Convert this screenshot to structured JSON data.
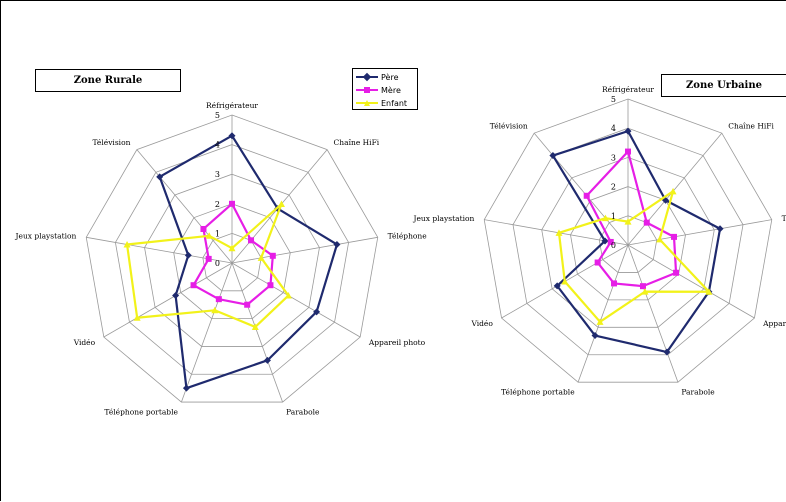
{
  "colors": {
    "pere": "#1f2a6e",
    "mere": "#e61ee6",
    "enfant": "#f2f21a",
    "grid": "#9a9a9a"
  },
  "legend": {
    "items": [
      "Père",
      "Mère",
      "Enfant"
    ]
  },
  "chart_data": [
    {
      "type": "radar",
      "title": "Zone Rurale",
      "categories": [
        "Réfrigérateur",
        "Chaîne HiFi",
        "Téléphone",
        "Appareil photo",
        "Parabole",
        "Téléphone portable",
        "Vidéo",
        "Jeux playstation",
        "Télévision"
      ],
      "ticks": [
        "0",
        "1",
        "2",
        "3",
        "4",
        "5"
      ],
      "rmax": 5,
      "series": [
        {
          "name": "Père",
          "values": [
            4.3,
            2.4,
            3.6,
            3.3,
            3.5,
            4.5,
            2.2,
            1.5,
            3.8
          ]
        },
        {
          "name": "Mère",
          "values": [
            2.0,
            1.0,
            1.4,
            1.5,
            1.5,
            1.3,
            1.5,
            0.8,
            1.5
          ]
        },
        {
          "name": "Enfant",
          "values": [
            0.5,
            2.6,
            1.0,
            2.2,
            2.3,
            1.7,
            3.7,
            3.6,
            1.2
          ]
        }
      ]
    },
    {
      "type": "radar",
      "title": "Zone Urbaine",
      "categories": [
        "Réfrigérateur",
        "Chaîne HiFi",
        "Téléphone",
        "Appareil photo",
        "Parabole",
        "Téléphone portable",
        "Vidéo",
        "Jeux playstation",
        "Télévision"
      ],
      "ticks": [
        "0",
        "1",
        "2",
        "3",
        "4",
        "5"
      ],
      "rmax": 5,
      "series": [
        {
          "name": "Père",
          "values": [
            3.9,
            2.0,
            3.2,
            3.2,
            3.9,
            3.3,
            2.8,
            0.8,
            4.0
          ]
        },
        {
          "name": "Mère",
          "values": [
            3.2,
            1.0,
            1.6,
            1.9,
            1.5,
            1.4,
            1.2,
            0.6,
            2.2
          ]
        },
        {
          "name": "Enfant",
          "values": [
            0.8,
            2.4,
            1.1,
            3.2,
            1.7,
            2.8,
            2.5,
            2.4,
            1.2
          ]
        }
      ]
    }
  ]
}
